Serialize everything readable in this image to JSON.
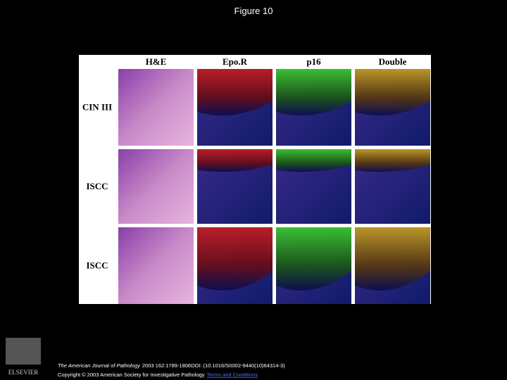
{
  "header": {
    "title": "Figure 10"
  },
  "figure": {
    "columns": [
      "H&E",
      "Epo.R",
      "p16",
      "Double"
    ],
    "rows": [
      "CIN III",
      "ISCC",
      "ISCC"
    ]
  },
  "footer": {
    "journal": "The American Journal of Pathology",
    "citation": "2003 162:1789-1806DOI: (10.1016/S0002-9440(10)64314-3)",
    "copyright": "Copyright © 2003 American Society for Investigative Pathology",
    "link": "Terms and Conditions",
    "logo_text": "ELSEVIER"
  }
}
